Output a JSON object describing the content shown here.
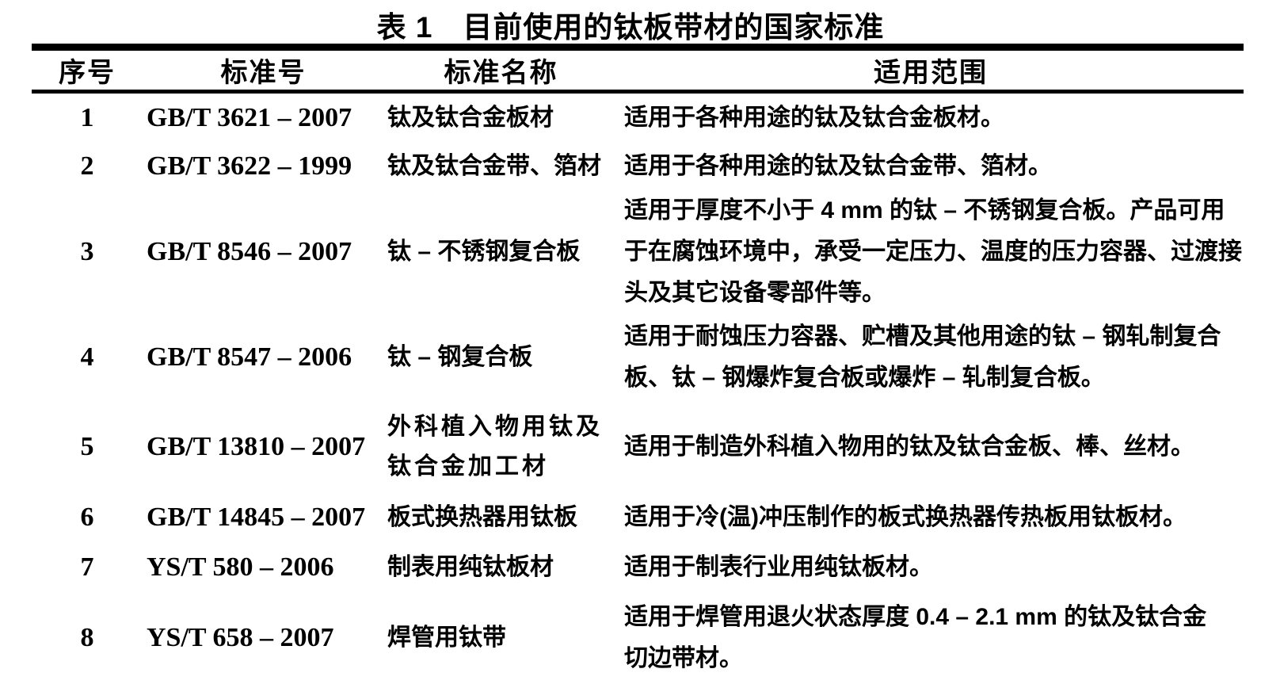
{
  "page": {
    "title": "表 1　目前使用的钛板带材的国家标准"
  },
  "table": {
    "headers": [
      "序号",
      "标准号",
      "标准名称",
      "适用范围"
    ],
    "rows": [
      {
        "no": "1",
        "standard_no": "GB/T 3621 – 2007",
        "name": "钛及钛合金板材",
        "scope": "适用于各种用途的钛及钛合金板材。"
      },
      {
        "no": "2",
        "standard_no": "GB/T 3622 – 1999",
        "name": "钛及钛合金带、箔材",
        "scope": "适用于各种用途的钛及钛合金带、箔材。"
      },
      {
        "no": "3",
        "standard_no": "GB/T 8546 – 2007",
        "name": "钛 – 不锈钢复合板",
        "scope": "适用于厚度不小于 4 mm 的钛 – 不锈钢复合板。产品可用\n于在腐蚀环境中，承受一定压力、温度的压力容器、过渡接\n头及其它设备零部件等。"
      },
      {
        "no": "4",
        "standard_no": "GB/T 8547 – 2006",
        "name": "钛 – 钢复合板",
        "scope": "适用于耐蚀压力容器、贮槽及其他用途的钛 – 钢轧制复合\n板、钛 – 钢爆炸复合板或爆炸 – 轧制复合板。"
      },
      {
        "no": "5",
        "standard_no": "GB/T 13810 – 2007",
        "name": "外科植入物用钛及\n钛合金加工材",
        "scope": "适用于制造外科植入物用的钛及钛合金板、棒、丝材。"
      },
      {
        "no": "6",
        "standard_no": "GB/T 14845 – 2007",
        "name": "板式换热器用钛板",
        "scope": "适用于冷(温)冲压制作的板式换热器传热板用钛板材。"
      },
      {
        "no": "7",
        "standard_no": "YS/T 580 – 2006",
        "name": "制表用纯钛板材",
        "scope": "适用于制表行业用纯钛板材。"
      },
      {
        "no": "8",
        "standard_no": "YS/T 658 – 2007",
        "name": "焊管用钛带",
        "scope": "适用于焊管用退火状态厚度 0.4 – 2.1 mm 的钛及钛合金\n切边带材。"
      }
    ]
  },
  "colors": {
    "text": "#000000",
    "background": "#ffffff",
    "rule": "#000000"
  }
}
